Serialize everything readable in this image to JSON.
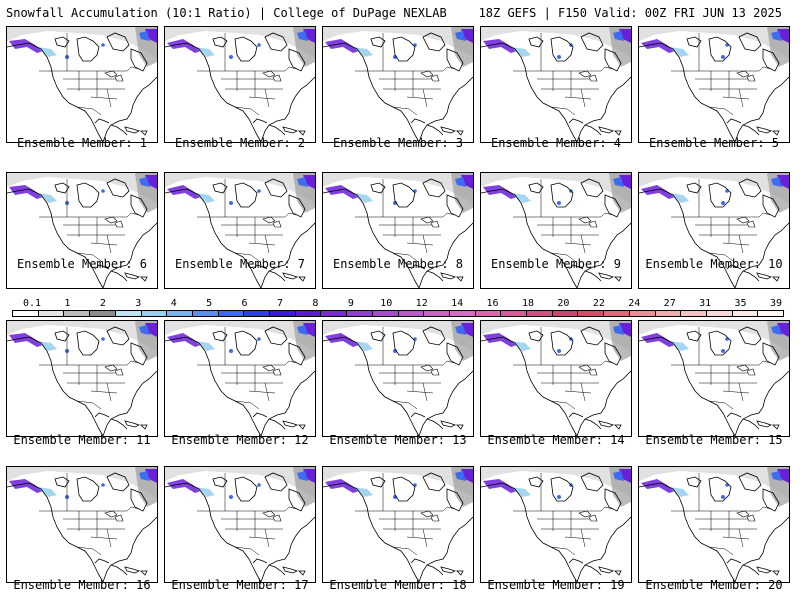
{
  "header": {
    "left": "Snowfall Accumulation (10:1 Ratio) | College of DuPage NEXLAB",
    "right": "18Z GEFS | F150 Valid: 00Z FRI JUN 13 2025"
  },
  "panel_prefix": "Ensemble Member:",
  "members": [
    "1",
    "2",
    "3",
    "4",
    "5",
    "6",
    "7",
    "8",
    "9",
    "10",
    "11",
    "12",
    "13",
    "14",
    "15",
    "16",
    "17",
    "18",
    "19",
    "20"
  ],
  "legend": {
    "labels": [
      "0.1",
      "1",
      "2",
      "3",
      "4",
      "5",
      "6",
      "7",
      "8",
      "9",
      "10",
      "12",
      "14",
      "16",
      "18",
      "20",
      "22",
      "24",
      "27",
      "31",
      "35",
      "39"
    ],
    "colors": [
      "#ffffff",
      "#e6e6e6",
      "#bdbdbd",
      "#8c8c8c",
      "#bfe6f0",
      "#9ad0ef",
      "#7bb3ee",
      "#5b8fee",
      "#3f6bf0",
      "#2e3fe8",
      "#3a1ae0",
      "#5a1ad6",
      "#7a2bd0",
      "#8f3fd2",
      "#a44dcf",
      "#b85ac8",
      "#c964c2",
      "#d66ec4",
      "#df66b0",
      "#d85b9a",
      "#cf4f86",
      "#c94872",
      "#d4506a",
      "#e2697a",
      "#ea8f96",
      "#f0aab0",
      "#f4c3c4",
      "#f7d8d6",
      "#fbe9e4",
      "#fff6ee"
    ]
  },
  "map_colors": {
    "heavy_snow": "#6a1fd8",
    "medium_snow": "#3f6bf0",
    "light_snow": "#c8c8c8",
    "trace_snow": "#9ad0ef"
  }
}
